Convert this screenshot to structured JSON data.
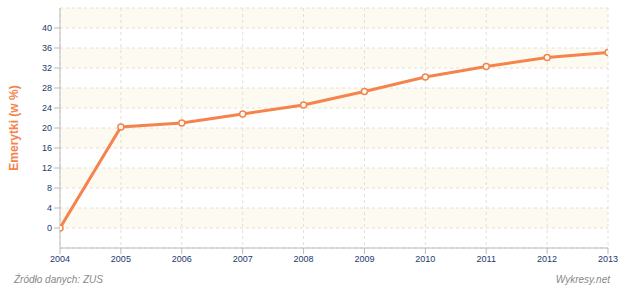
{
  "chart_data": {
    "type": "line",
    "y_label": "Emerytki (w %)",
    "x": [
      2004,
      2005,
      2006,
      2007,
      2008,
      2009,
      2010,
      2011,
      2012,
      2013
    ],
    "values": [
      0,
      20.2,
      21,
      22.8,
      24.6,
      27.3,
      30.2,
      32.3,
      34.1,
      35.1
    ],
    "color": "#f4844c",
    "marker": "circle",
    "xlim": [
      2004,
      2013
    ],
    "xticks": [
      2004,
      2005,
      2006,
      2007,
      2008,
      2009,
      2010,
      2011,
      2012,
      2013
    ],
    "ylim": [
      -4,
      44
    ],
    "yticks": [
      0,
      4,
      8,
      12,
      16,
      20,
      24,
      28,
      32,
      36,
      40
    ],
    "grid": true,
    "source": "Źródło danych: ZUS",
    "credit": "Wykresy.net",
    "watermark": "wykresy.net"
  }
}
